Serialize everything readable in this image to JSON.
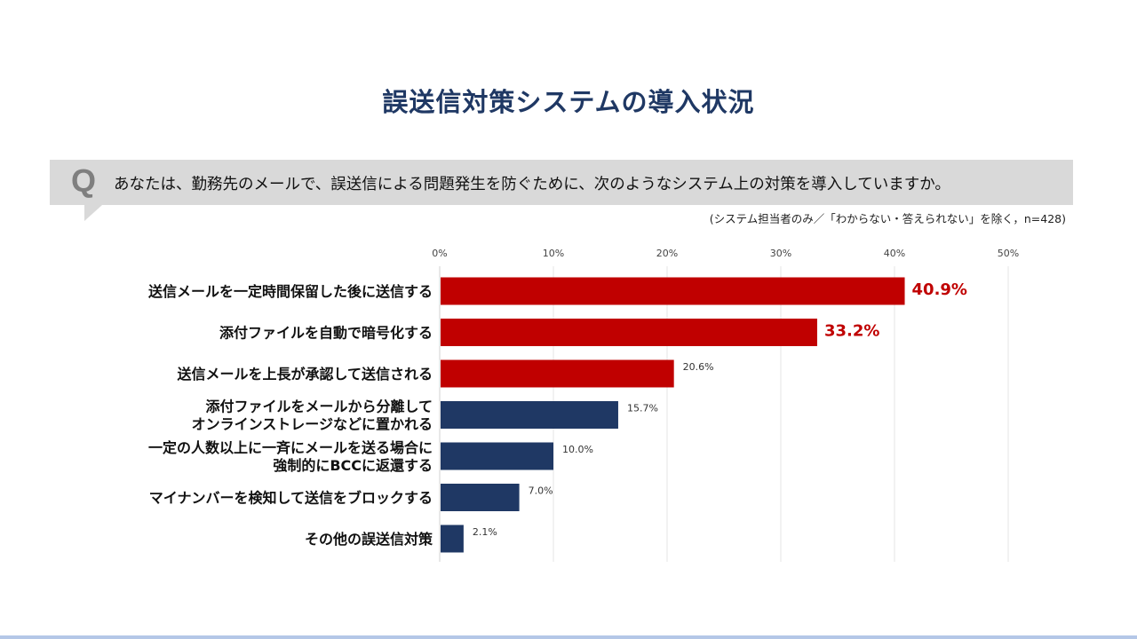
{
  "title": "誤送信対策システムの導入状況",
  "question": {
    "mark": "Q",
    "text": "あなたは、勤務先のメールで、誤送信による問題発生を防ぐために、次のようなシステム上の対策を導入していますか。"
  },
  "note": "(システム担当者のみ／「わからない・答えられない」を除く，n=428)",
  "colors": {
    "highlight": "#c00000",
    "normal": "#1f3864",
    "grid": "#e6e6e6",
    "title": "#1f3864"
  },
  "chart_data": {
    "type": "bar",
    "orientation": "horizontal",
    "xlim": [
      0,
      50
    ],
    "ticks": [
      0,
      10,
      20,
      30,
      40,
      50
    ],
    "tick_labels": [
      "0%",
      "10%",
      "20%",
      "30%",
      "40%",
      "50%"
    ],
    "grid": true,
    "categories": [
      [
        "送信メールを一定時間保留した後に送信する"
      ],
      [
        "添付ファイルを自動で暗号化する"
      ],
      [
        "送信メールを上長が承認して送信される"
      ],
      [
        "添付ファイルをメールから分離して",
        "オンラインストレージなどに置かれる"
      ],
      [
        "一定の人数以上に一斉にメールを送る場合に",
        "強制的にBCCに返還する"
      ],
      [
        "マイナンバーを検知して送信をブロックする"
      ],
      [
        "その他の誤送信対策"
      ]
    ],
    "values": [
      40.9,
      33.2,
      20.6,
      15.7,
      10.0,
      7.0,
      2.1
    ],
    "value_labels": [
      "40.9%",
      "33.2%",
      "20.6%",
      "15.7%",
      "10.0%",
      "7.0%",
      "2.1%"
    ],
    "bar_colors": [
      "#c00000",
      "#c00000",
      "#c00000",
      "#1f3864",
      "#1f3864",
      "#1f3864",
      "#1f3864"
    ],
    "label_emphasis": [
      true,
      true,
      false,
      false,
      false,
      false,
      false
    ]
  }
}
